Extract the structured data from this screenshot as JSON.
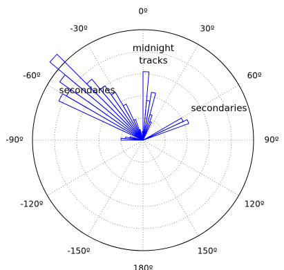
{
  "chart_data": {
    "type": "polar-histogram",
    "color": "#0000ff",
    "bins": [
      -90,
      -85,
      -80,
      -75,
      -70,
      -65,
      -60,
      -55,
      -50,
      -45,
      -40,
      -35,
      -30,
      -25,
      -20,
      -15,
      -10,
      -5,
      0,
      5,
      10,
      15,
      20,
      25,
      30,
      35,
      40,
      45,
      50,
      55,
      60,
      65,
      70
    ],
    "values": [
      1.0,
      0.8,
      0.6,
      0,
      0,
      4.2,
      4.0,
      4.6,
      5.5,
      3.6,
      3.0,
      2.5,
      1.8,
      1.0,
      0.5,
      0,
      0,
      0.4,
      3.1,
      1.8,
      2.2,
      1.2,
      0.9,
      0,
      0,
      0,
      0,
      0,
      0,
      0,
      2.0,
      2.2
    ],
    "rlim": [
      0,
      5
    ],
    "rings": [
      1,
      2,
      3,
      4,
      5
    ],
    "angle_ticks": [
      {
        "value": 0,
        "label": "0º"
      },
      {
        "value": 30,
        "label": "30º"
      },
      {
        "value": 60,
        "label": "60º"
      },
      {
        "value": 90,
        "label": "90º"
      },
      {
        "value": 120,
        "label": "120º"
      },
      {
        "value": 150,
        "label": "150º"
      },
      {
        "value": 180,
        "label": "180º"
      },
      {
        "value": -150,
        "label": "-150º"
      },
      {
        "value": -120,
        "label": "-120º"
      },
      {
        "value": -90,
        "label": "-90º"
      },
      {
        "value": -60,
        "label": "-60º"
      },
      {
        "value": -30,
        "label": "-30º"
      }
    ],
    "annotations": [
      [
        "midnight",
        "tracks"
      ],
      [
        "secondaries"
      ],
      [
        "secondaries"
      ]
    ],
    "grid": true
  }
}
